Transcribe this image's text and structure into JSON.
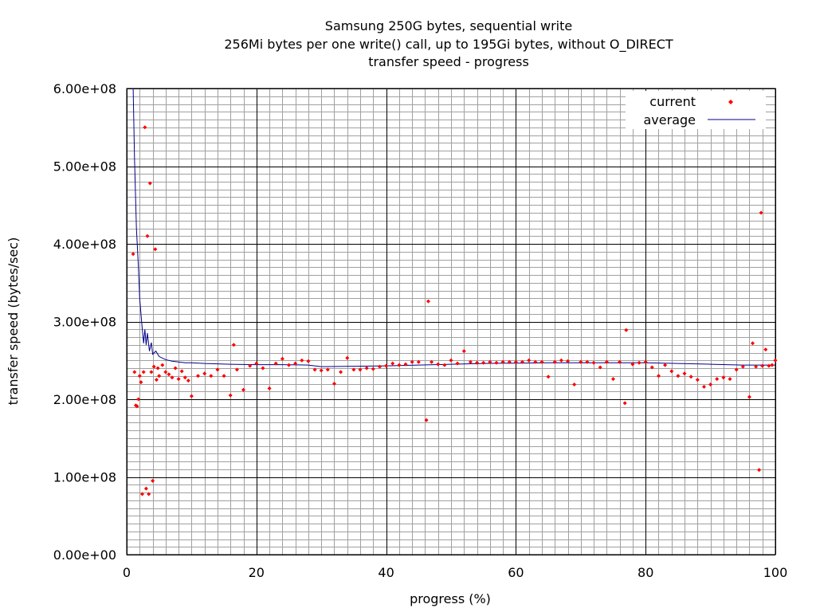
{
  "chart_data": {
    "type": "scatter",
    "title": [
      "Samsung 250G bytes, sequential write",
      "256Mi bytes per one write() call, up to 195Gi bytes, without O_DIRECT",
      "transfer speed - progress"
    ],
    "xlabel": "progress (%)",
    "ylabel": "transfer speed (bytes/sec)",
    "xlim": [
      0,
      100
    ],
    "ylim": [
      0,
      600000000
    ],
    "x_ticks": [
      0,
      20,
      40,
      60,
      80,
      100
    ],
    "x_tick_labels": [
      "0",
      "20",
      "40",
      "60",
      "80",
      "100"
    ],
    "y_ticks": [
      0,
      100000000,
      200000000,
      300000000,
      400000000,
      500000000,
      600000000
    ],
    "y_tick_labels": [
      "0.00e+00",
      "1.00e+08",
      "2.00e+08",
      "3.00e+08",
      "4.00e+08",
      "5.00e+08",
      "6.00e+08"
    ],
    "grid": {
      "major": true,
      "minor": true,
      "x_minor_step": 2,
      "y_minor_step": 10000000
    },
    "legend_position": "top-right",
    "colors": {
      "current": "#ff0000",
      "average": "#00008b",
      "major_grid": "#000000",
      "minor_grid": "#a0a0a0"
    },
    "series": [
      {
        "name": "current",
        "style": "points",
        "x": [
          1.0,
          1.2,
          1.4,
          1.6,
          1.8,
          2.0,
          2.2,
          2.4,
          2.6,
          2.8,
          3.0,
          3.2,
          3.4,
          3.6,
          3.8,
          4.0,
          4.2,
          4.4,
          4.6,
          4.8,
          5.0,
          5.5,
          6.0,
          6.5,
          7.0,
          7.5,
          8.0,
          8.5,
          9.0,
          9.5,
          10.0,
          11.0,
          12.0,
          13.0,
          14.0,
          15.0,
          16.0,
          16.5,
          17.0,
          18.0,
          19.0,
          20.0,
          21.0,
          22.0,
          23.0,
          24.0,
          25.0,
          26.0,
          27.0,
          28.0,
          29.0,
          30.0,
          31.0,
          32.0,
          33.0,
          34.0,
          35.0,
          36.0,
          37.0,
          38.0,
          39.0,
          40.0,
          41.0,
          42.0,
          43.0,
          44.0,
          45.0,
          46.2,
          46.5,
          47.0,
          48.0,
          49.0,
          50.0,
          51.0,
          52.0,
          53.0,
          54.0,
          55.0,
          56.0,
          57.0,
          58.0,
          59.0,
          60.0,
          61.0,
          62.0,
          63.0,
          64.0,
          65.0,
          66.0,
          67.0,
          68.0,
          69.0,
          70.0,
          71.0,
          72.0,
          73.0,
          74.0,
          75.0,
          76.0,
          76.8,
          77.0,
          78.0,
          79.0,
          80.0,
          81.0,
          82.0,
          83.0,
          84.0,
          85.0,
          86.0,
          87.0,
          88.0,
          89.0,
          90.0,
          91.0,
          92.0,
          93.0,
          94.0,
          95.0,
          96.0,
          96.5,
          97.0,
          97.5,
          97.8,
          98.0,
          98.5,
          99.0,
          99.5,
          100.0
        ],
        "y": [
          387000000,
          235000000,
          192000000,
          191000000,
          200000000,
          230000000,
          222000000,
          78000000,
          235000000,
          550000000,
          85000000,
          410000000,
          78000000,
          478000000,
          235000000,
          95000000,
          242000000,
          393000000,
          225000000,
          240000000,
          230000000,
          244000000,
          235000000,
          232000000,
          228000000,
          240000000,
          226000000,
          236000000,
          228000000,
          224000000,
          204000000,
          230000000,
          233000000,
          230000000,
          238000000,
          230000000,
          205000000,
          270000000,
          238000000,
          212000000,
          243000000,
          246000000,
          240000000,
          214000000,
          246000000,
          252000000,
          244000000,
          246000000,
          250000000,
          249000000,
          238000000,
          237000000,
          238000000,
          220000000,
          235000000,
          253000000,
          238000000,
          238000000,
          240000000,
          239000000,
          242000000,
          243000000,
          246000000,
          244000000,
          245000000,
          248000000,
          248000000,
          173000000,
          326000000,
          248000000,
          245000000,
          244000000,
          250000000,
          246000000,
          262000000,
          248000000,
          247000000,
          247000000,
          248000000,
          247000000,
          248000000,
          248000000,
          248000000,
          248000000,
          250000000,
          248000000,
          248000000,
          229000000,
          248000000,
          250000000,
          249000000,
          219000000,
          248000000,
          248000000,
          247000000,
          241000000,
          248000000,
          226000000,
          248000000,
          195000000,
          289000000,
          245000000,
          247000000,
          248000000,
          241000000,
          230000000,
          244000000,
          236000000,
          230000000,
          233000000,
          229000000,
          225000000,
          216000000,
          219000000,
          226000000,
          228000000,
          226000000,
          238000000,
          242000000,
          203000000,
          272000000,
          242000000,
          109000000,
          440000000,
          243000000,
          264000000,
          243000000,
          244000000,
          250000000
        ]
      },
      {
        "name": "average",
        "style": "line",
        "x": [
          1.0,
          1.2,
          1.5,
          1.8,
          2.0,
          2.3,
          2.6,
          2.8,
          3.0,
          3.2,
          3.5,
          3.8,
          4.0,
          4.5,
          5.0,
          6.0,
          7.0,
          8.0,
          9.0,
          10.0,
          12.0,
          14.0,
          16.0,
          20.0,
          24.0,
          28.0,
          30.0,
          35.0,
          40.0,
          45.0,
          50.0,
          55.0,
          60.0,
          65.0,
          70.0,
          75.0,
          80.0,
          85.0,
          90.0,
          95.0,
          100.0
        ],
        "y": [
          600000000,
          510000000,
          420000000,
          370000000,
          330000000,
          300000000,
          272000000,
          290000000,
          270000000,
          285000000,
          262000000,
          273000000,
          258000000,
          262000000,
          255000000,
          251000000,
          249000000,
          248000000,
          247000000,
          247000000,
          246000000,
          245500000,
          245000000,
          244500000,
          244500000,
          244000000,
          242000000,
          242500000,
          243000000,
          244000000,
          245000000,
          246000000,
          246500000,
          247000000,
          247000000,
          247000000,
          247000000,
          246000000,
          245000000,
          244000000,
          244000000
        ]
      }
    ]
  }
}
